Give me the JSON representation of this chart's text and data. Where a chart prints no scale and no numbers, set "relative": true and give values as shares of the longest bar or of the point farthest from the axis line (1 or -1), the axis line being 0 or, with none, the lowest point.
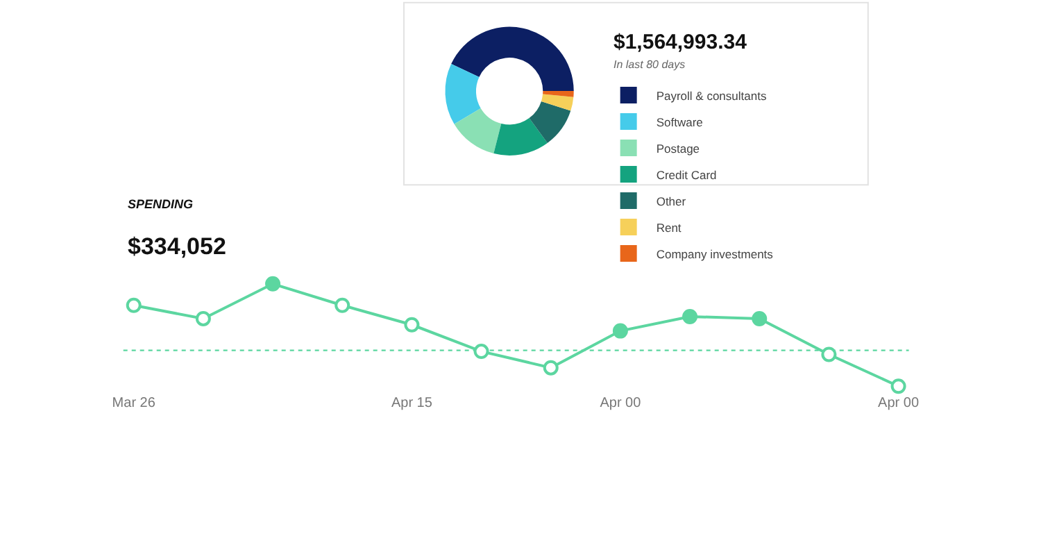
{
  "chart_data": [
    {
      "type": "line",
      "title": "SPENDING",
      "subtitle": "$334,052",
      "relative": true,
      "categories": [
        "Mar 26",
        null,
        null,
        null,
        "Apr 15",
        null,
        null,
        "Apr 00",
        null,
        null,
        null,
        "Apr 00"
      ],
      "series": [
        {
          "color": "#5cd6a0",
          "values": [
            0.79,
            0.66,
            1,
            0.79,
            0.6,
            0.34,
            0.18,
            0.54,
            0.68,
            0.66,
            0.31,
            0
          ],
          "colors": [
            "#ffffff",
            "#ffffff",
            "#5cd6a0",
            "#ffffff",
            "#ffffff",
            "#ffffff",
            "#ffffff",
            "#5cd6a0",
            "#5cd6a0",
            "#5cd6a0",
            "#ffffff",
            "#ffffff"
          ]
        }
      ],
      "marker": "circle",
      "line_style": "solid",
      "grid": false,
      "legend": false,
      "ref_lines": [
        {
          "axis": "y",
          "value": 0.35,
          "color": "#5cd6a0",
          "line_style": "dotted"
        }
      ]
    },
    {
      "type": "donut",
      "title": "$1,564,993.34",
      "subtitle": "In last 80 days",
      "categories": [
        "Payroll & consultants",
        "Software",
        "Postage",
        "Credit Card",
        "Other",
        "Rent",
        "Company investments"
      ],
      "values": [
        43,
        15.5,
        12.5,
        14,
        10,
        3.5,
        1.5
      ],
      "colors": [
        "#0c1f63",
        "#45cbea",
        "#8ae0b4",
        "#14a37f",
        "#1f6b68",
        "#f6d05a",
        "#e8661a"
      ],
      "legend": "right"
    }
  ]
}
